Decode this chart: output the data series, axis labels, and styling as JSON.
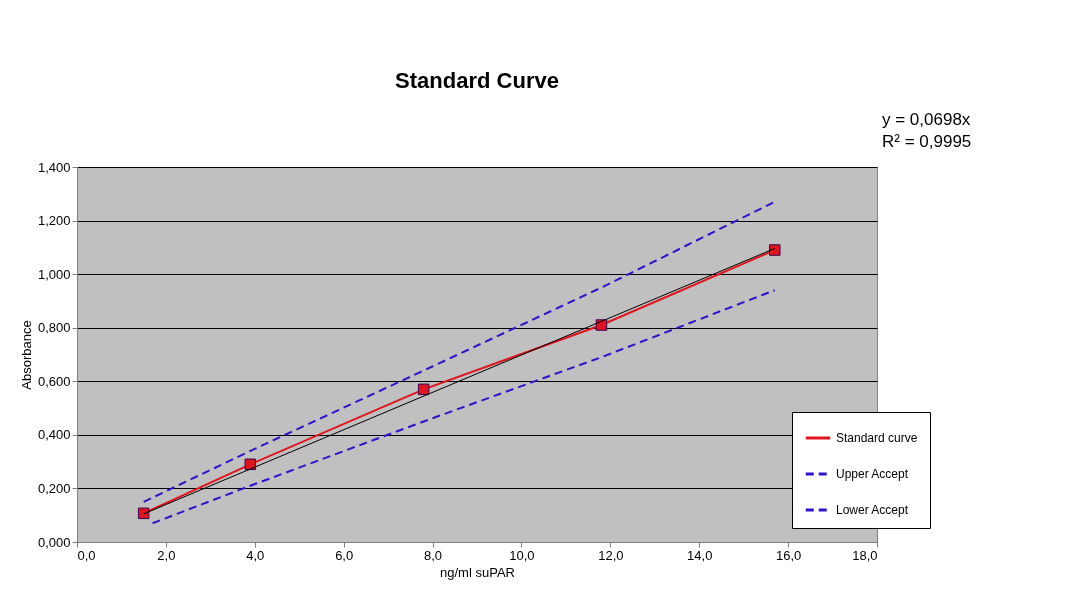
{
  "chart_data": {
    "type": "line",
    "title": "Standard Curve",
    "xlabel": "ng/ml suPAR",
    "ylabel": "Absorbance",
    "annotations": [
      "y = 0,0698x",
      "R² = 0,9995"
    ],
    "series": [
      {
        "name": "Standard curve",
        "color": "#e0141c",
        "x": [
          1.5,
          3.9,
          7.8,
          11.8,
          15.7
        ],
        "values": [
          0.107,
          0.29,
          0.57,
          0.81,
          1.09
        ],
        "marker": "square",
        "line_style": "solid"
      },
      {
        "name": "Upper Accept",
        "color": "#3311cc",
        "x": [
          1.5,
          3.9,
          7.8,
          11.8,
          15.7
        ],
        "values": [
          0.15,
          0.34,
          0.64,
          0.95,
          1.27
        ],
        "marker": "none",
        "line_style": "dashed"
      },
      {
        "name": "Lower Accept",
        "color": "#3311cc",
        "x": [
          1.7,
          3.9,
          7.8,
          11.8,
          15.7
        ],
        "values": [
          0.07,
          0.21,
          0.45,
          0.69,
          0.94
        ],
        "marker": "none",
        "line_style": "dashed"
      },
      {
        "type": "line",
        "color": "#000000",
        "x": [
          1.5,
          15.7
        ],
        "values": [
          0.105,
          1.096
        ],
        "marker": "none",
        "line_style": "solid"
      }
    ],
    "xlim": [
      0,
      18
    ],
    "xticks": [
      {
        "value": 0,
        "label": "0,0"
      },
      {
        "value": 2,
        "label": "2,0"
      },
      {
        "value": 4,
        "label": "4,0"
      },
      {
        "value": 6,
        "label": "6,0"
      },
      {
        "value": 8,
        "label": "8,0"
      },
      {
        "value": 10,
        "label": "10,0"
      },
      {
        "value": 12,
        "label": "12,0"
      },
      {
        "value": 14,
        "label": "14,0"
      },
      {
        "value": 16,
        "label": "16,0"
      },
      {
        "value": 18,
        "label": "18,0"
      }
    ],
    "ylim": [
      0,
      1.4
    ],
    "yticks": [
      {
        "value": 0,
        "label": "0,000"
      },
      {
        "value": 0.2,
        "label": "0,200"
      },
      {
        "value": 0.4,
        "label": "0,400"
      },
      {
        "value": 0.6,
        "label": "0,600"
      },
      {
        "value": 0.8,
        "label": "0,800"
      },
      {
        "value": 1,
        "label": "1,000"
      },
      {
        "value": 1.2,
        "label": "1,200"
      },
      {
        "value": 1.4,
        "label": "1,400"
      }
    ],
    "grid": "y",
    "legend": "bottom right"
  }
}
